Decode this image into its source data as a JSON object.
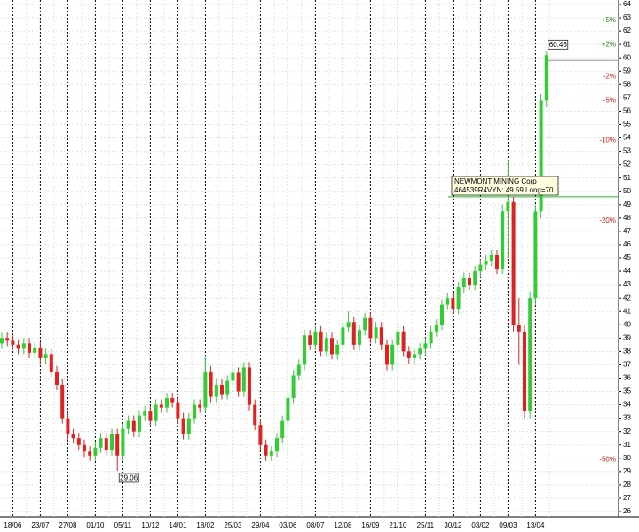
{
  "chart_data": {
    "type": "candlestick",
    "categories": [
      null,
      null,
      "18/06",
      null,
      null,
      null,
      null,
      "23/07",
      null,
      null,
      null,
      null,
      "27/08",
      null,
      null,
      null,
      null,
      "01/10",
      null,
      null,
      null,
      null,
      "05/11",
      null,
      null,
      null,
      null,
      "10/12",
      null,
      null,
      null,
      null,
      "14/01",
      null,
      null,
      null,
      null,
      "18/02",
      null,
      null,
      null,
      null,
      "25/03",
      null,
      null,
      null,
      null,
      "29/04",
      null,
      null,
      null,
      null,
      "03/06",
      null,
      null,
      null,
      null,
      "08/07",
      null,
      null,
      null,
      null,
      "12/08",
      null,
      null,
      null,
      null,
      "16/09",
      null,
      null,
      null,
      null,
      "21/10",
      null,
      null,
      null,
      null,
      "25/11",
      null,
      null,
      null,
      null,
      "30/12",
      null,
      null,
      null,
      null,
      "03/02",
      null,
      null,
      null,
      null,
      "09/03",
      null,
      null,
      null,
      null,
      "13/04",
      null,
      null
    ],
    "open": [
      38.6,
      39.0,
      38.8,
      38.5,
      38.2,
      38.6,
      37.9,
      38.3,
      37.5,
      37.8,
      36.5,
      35.5,
      33.0,
      31.8,
      31.5,
      31.0,
      30.5,
      30.2,
      30.8,
      31.5,
      30.6,
      31.8,
      30.2,
      32.2,
      32.8,
      32.0,
      33.2,
      33.5,
      32.8,
      34.0,
      33.8,
      34.5,
      34.2,
      33.0,
      31.8,
      33.0,
      34.0,
      33.8,
      36.5,
      34.6,
      35.5,
      34.8,
      35.8,
      36.4,
      35.0,
      36.8,
      34.0,
      32.5,
      31.0,
      30.2,
      30.5,
      31.5,
      32.8,
      34.5,
      36.2,
      37.0,
      39.2,
      38.5,
      39.5,
      38.0,
      39.0,
      37.8,
      38.5,
      39.8,
      40.2,
      38.5,
      39.6,
      40.5,
      39.0,
      39.8,
      38.5,
      37.0,
      38.5,
      39.5,
      38.0,
      37.5,
      37.8,
      38.2,
      38.6,
      39.5,
      40.0,
      41.5,
      42.0,
      41.2,
      42.8,
      43.5,
      43.0,
      44.0,
      44.5,
      44.8,
      45.2,
      44.2,
      48.5,
      49.2,
      40.0,
      39.5,
      33.5,
      42.0,
      48.5,
      56.8
    ],
    "high": [
      39.4,
      39.4,
      39.2,
      38.9,
      39.0,
      39.0,
      38.7,
      38.7,
      38.2,
      38.2,
      36.9,
      35.9,
      33.4,
      32.2,
      31.9,
      31.4,
      30.9,
      31.2,
      31.9,
      31.9,
      32.2,
      32.2,
      32.6,
      33.2,
      33.2,
      33.6,
      33.9,
      33.9,
      34.4,
      34.4,
      34.9,
      34.9,
      34.6,
      33.4,
      33.4,
      34.4,
      34.4,
      37.6,
      36.9,
      35.9,
      35.9,
      36.2,
      36.8,
      36.8,
      37.2,
      37.2,
      34.4,
      32.9,
      31.4,
      30.9,
      31.9,
      33.2,
      34.9,
      36.6,
      37.4,
      39.6,
      39.6,
      39.9,
      39.9,
      39.4,
      39.4,
      38.9,
      40.2,
      41.0,
      40.6,
      40.0,
      40.9,
      40.9,
      40.2,
      40.2,
      38.9,
      38.9,
      39.9,
      39.9,
      38.4,
      38.2,
      38.6,
      39.0,
      39.9,
      40.4,
      41.9,
      42.4,
      42.4,
      43.2,
      43.9,
      43.9,
      44.4,
      44.9,
      45.2,
      45.6,
      45.6,
      49.0,
      52.3,
      49.6,
      42.0,
      40.0,
      42.5,
      49.0,
      57.3,
      60.46
    ],
    "low": [
      38.2,
      38.4,
      38.1,
      37.8,
      37.8,
      37.5,
      37.5,
      37.1,
      37.1,
      36.1,
      35.1,
      32.6,
      31.4,
      31.1,
      30.6,
      30.1,
      29.8,
      29.8,
      30.4,
      30.2,
      30.2,
      29.06,
      29.8,
      31.8,
      31.6,
      31.6,
      32.8,
      32.4,
      32.4,
      33.4,
      33.4,
      33.8,
      32.6,
      31.4,
      31.4,
      32.6,
      33.4,
      33.4,
      34.2,
      34.2,
      34.4,
      34.4,
      35.4,
      34.6,
      34.6,
      33.6,
      32.1,
      30.6,
      29.8,
      29.8,
      30.1,
      31.1,
      32.4,
      34.1,
      35.8,
      36.6,
      38.1,
      38.1,
      37.6,
      37.6,
      37.4,
      37.4,
      38.1,
      39.4,
      38.1,
      38.1,
      39.2,
      38.6,
      38.6,
      38.1,
      36.6,
      36.6,
      38.1,
      37.6,
      37.1,
      37.1,
      37.4,
      37.8,
      38.2,
      39.1,
      39.6,
      41.1,
      40.8,
      40.8,
      42.4,
      42.6,
      42.6,
      43.6,
      44.1,
      44.4,
      43.8,
      43.8,
      45.0,
      39.5,
      37.0,
      33.0,
      33.0,
      41.5,
      48.0,
      56.3
    ],
    "close": [
      39.0,
      38.8,
      38.5,
      38.2,
      38.6,
      37.9,
      38.3,
      37.5,
      37.8,
      36.5,
      35.5,
      33.0,
      31.8,
      31.5,
      31.0,
      30.5,
      30.2,
      30.8,
      31.5,
      30.6,
      31.8,
      30.2,
      32.2,
      32.8,
      32.0,
      33.2,
      33.5,
      32.8,
      34.0,
      33.8,
      34.5,
      34.2,
      33.0,
      31.8,
      33.0,
      34.0,
      33.8,
      36.5,
      34.6,
      35.5,
      34.8,
      35.8,
      36.4,
      35.0,
      36.8,
      34.0,
      32.5,
      31.0,
      30.2,
      30.5,
      31.5,
      32.8,
      34.5,
      36.2,
      37.0,
      39.2,
      38.5,
      39.5,
      38.0,
      39.0,
      37.8,
      38.5,
      39.8,
      40.2,
      38.5,
      39.6,
      40.5,
      39.0,
      39.8,
      38.5,
      37.0,
      38.5,
      39.5,
      38.0,
      37.5,
      37.8,
      38.2,
      38.6,
      39.5,
      40.0,
      41.5,
      42.0,
      41.2,
      42.8,
      43.5,
      43.0,
      44.0,
      44.5,
      44.8,
      45.2,
      44.2,
      48.5,
      49.2,
      40.0,
      39.5,
      33.5,
      42.0,
      48.5,
      56.8,
      60.2
    ],
    "up_color": "#33cc33",
    "down_color": "#dd2222",
    "ylim": [
      26,
      64
    ],
    "yticks": [
      26,
      27,
      28,
      29,
      30,
      31,
      32,
      33,
      34,
      35,
      36,
      37,
      38,
      39,
      40,
      41,
      42,
      43,
      44,
      45,
      46,
      47,
      48,
      49,
      50,
      51,
      52,
      53,
      54,
      55,
      56,
      57,
      58,
      59,
      60,
      61,
      62,
      63,
      64
    ],
    "grid": true,
    "percent_levels": [
      {
        "label": "+5%",
        "value": 62.8,
        "color": "#228822"
      },
      {
        "label": "+2%",
        "value": 61.0,
        "color": "#228822"
      },
      {
        "label": "-2%",
        "value": 58.6,
        "color": "#cc2222"
      },
      {
        "label": "-5%",
        "value": 56.8,
        "color": "#cc2222"
      },
      {
        "label": "-10%",
        "value": 53.8,
        "color": "#cc2222"
      },
      {
        "label": "-20%",
        "value": 47.8,
        "color": "#cc2222"
      },
      {
        "label": "-50%",
        "value": 29.9,
        "color": "#cc2222"
      }
    ],
    "reference_lines": [
      {
        "value": 59.8,
        "color": "#999999"
      },
      {
        "value": 49.59,
        "color": "#22bb22"
      }
    ],
    "annotations": [
      {
        "label": "60.46",
        "value": 60.46,
        "index": 99
      },
      {
        "label": "29.06",
        "value": 29.06,
        "index": 21
      }
    ],
    "tooltip": {
      "title": "NEWMONT MINING Corp",
      "text": "464539R4VYN: 49.59 Long=70"
    }
  }
}
